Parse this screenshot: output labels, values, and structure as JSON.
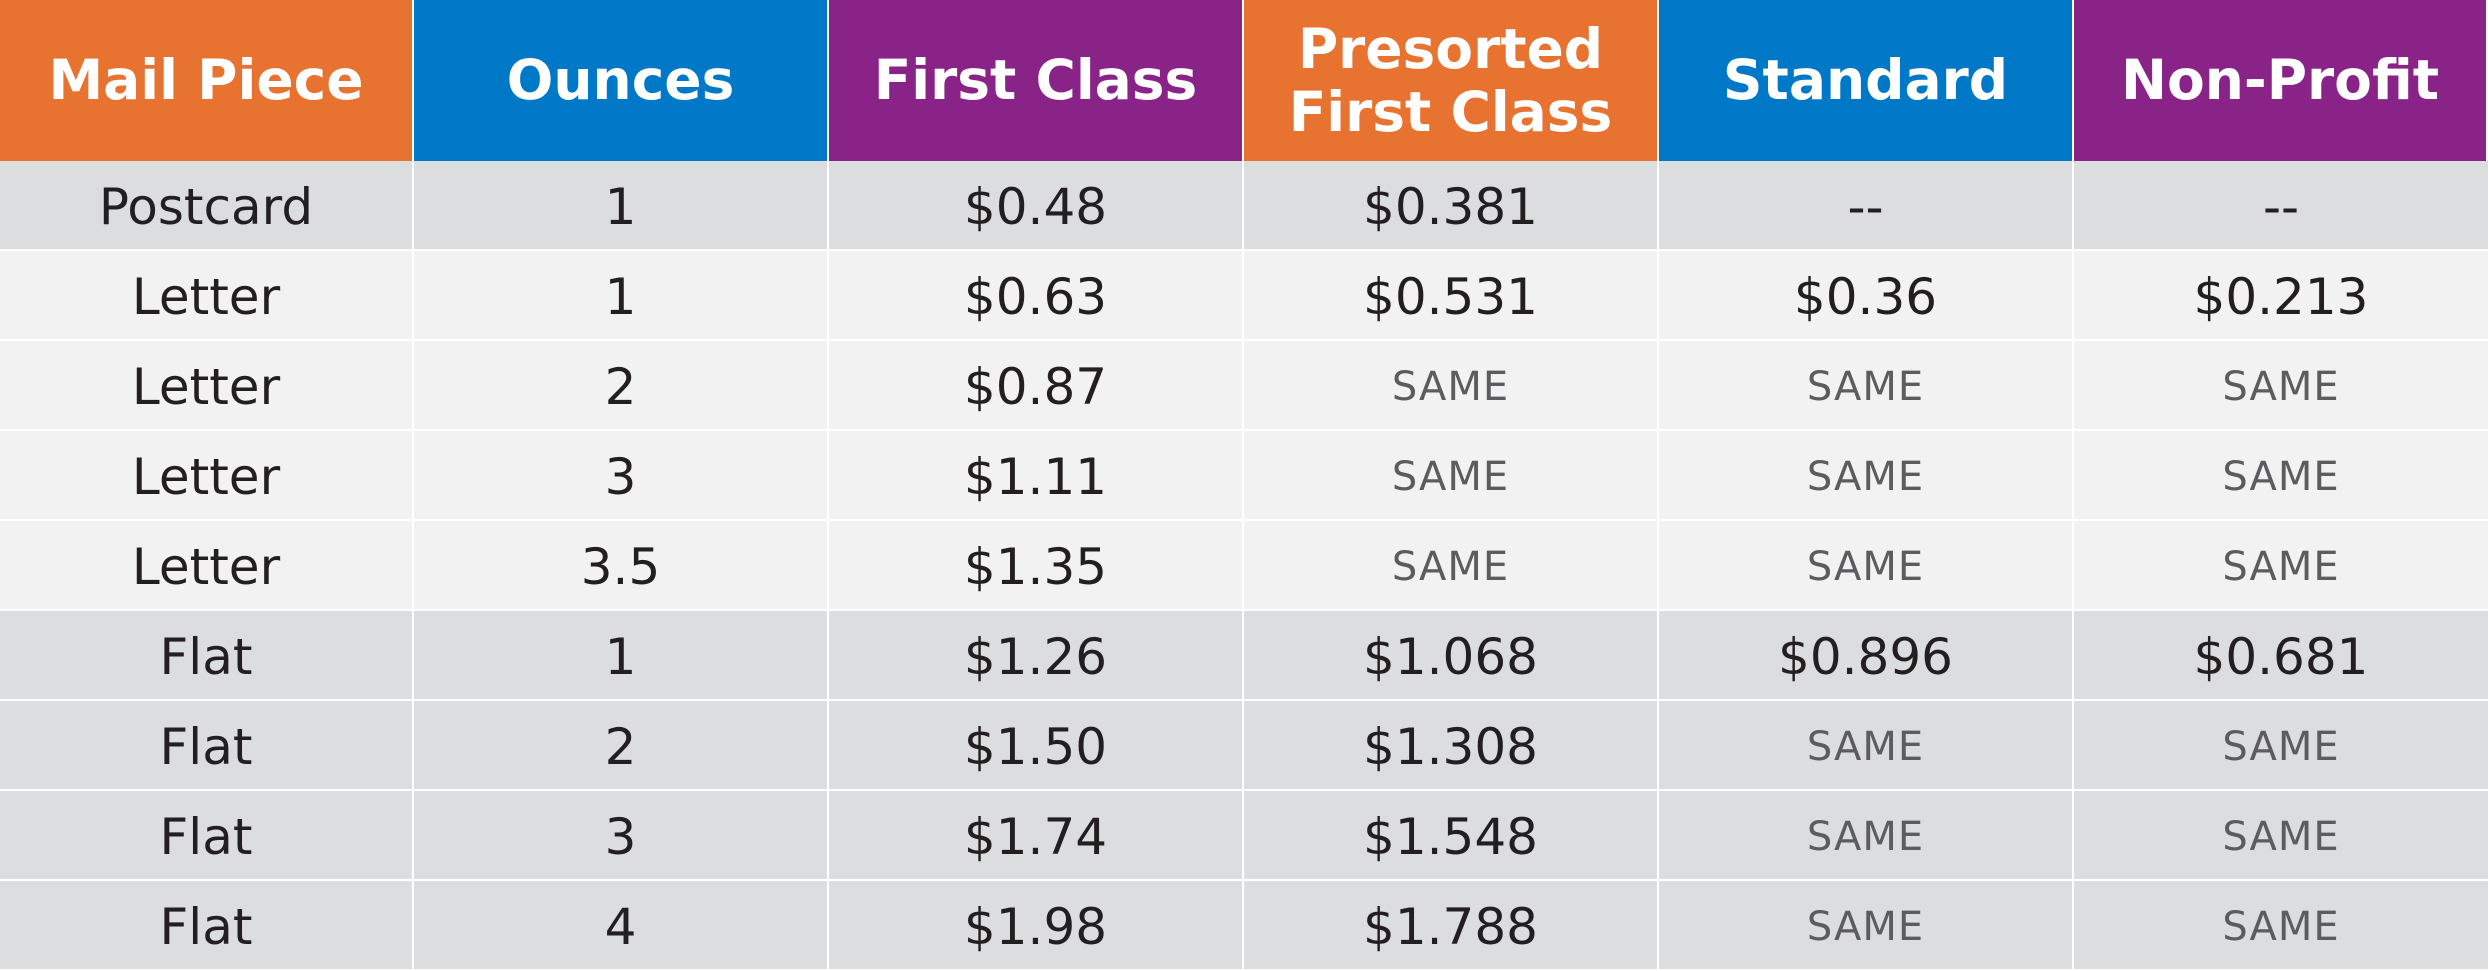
{
  "colors": {
    "orange": "#e87230",
    "blue": "#0078c8",
    "purple": "#8a2387",
    "row_dark": "#dcdddf",
    "row_light": "#f1f2f1"
  },
  "headers": [
    {
      "lines": [
        "Mail Piece"
      ],
      "color": "#e87230"
    },
    {
      "lines": [
        "Ounces"
      ],
      "color": "#0078c8"
    },
    {
      "lines": [
        "First Class"
      ],
      "color": "#8a2387"
    },
    {
      "lines": [
        "Presorted",
        "First Class"
      ],
      "color": "#e87230"
    },
    {
      "lines": [
        "Standard"
      ],
      "color": "#0078c8"
    },
    {
      "lines": [
        "Non-Profit"
      ],
      "color": "#8a2387"
    }
  ],
  "rows": [
    {
      "shade": "dark",
      "cells": [
        "Postcard",
        "1",
        "$0.48",
        "$0.381",
        "--",
        "--"
      ]
    },
    {
      "shade": "light",
      "cells": [
        "Letter",
        "1",
        "$0.63",
        "$0.531",
        "$0.36",
        "$0.213"
      ]
    },
    {
      "shade": "light",
      "cells": [
        "Letter",
        "2",
        "$0.87",
        "SAME",
        "SAME",
        "SAME"
      ]
    },
    {
      "shade": "light",
      "cells": [
        "Letter",
        "3",
        "$1.11",
        "SAME",
        "SAME",
        "SAME"
      ]
    },
    {
      "shade": "light",
      "cells": [
        "Letter",
        "3.5",
        "$1.35",
        "SAME",
        "SAME",
        "SAME"
      ]
    },
    {
      "shade": "dark",
      "cells": [
        "Flat",
        "1",
        "$1.26",
        "$1.068",
        "$0.896",
        "$0.681"
      ]
    },
    {
      "shade": "dark",
      "cells": [
        "Flat",
        "2",
        "$1.50",
        "$1.308",
        "SAME",
        "SAME"
      ]
    },
    {
      "shade": "dark",
      "cells": [
        "Flat",
        "3",
        "$1.74",
        "$1.548",
        "SAME",
        "SAME"
      ]
    },
    {
      "shade": "dark",
      "cells": [
        "Flat",
        "4",
        "$1.98",
        "$1.788",
        "SAME",
        "SAME"
      ]
    }
  ]
}
